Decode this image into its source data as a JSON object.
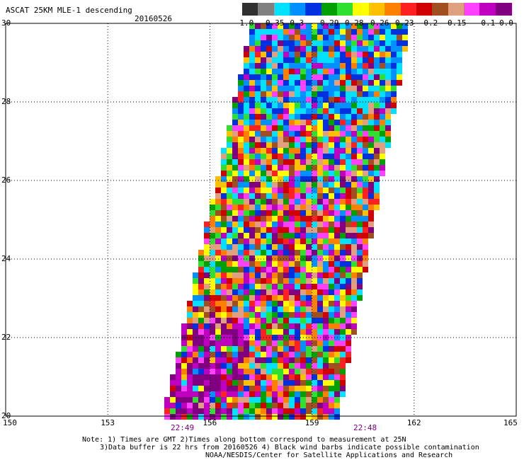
{
  "header": {
    "title": "ASCAT 25KM MLE-1 descending",
    "date": "20160526"
  },
  "colorbar": {
    "colors": [
      "#303030",
      "#808080",
      "#00e0ff",
      "#0090ff",
      "#0030e0",
      "#00a000",
      "#30e030",
      "#ffff00",
      "#ffc000",
      "#ff8000",
      "#ff2020",
      "#d00000",
      "#a05020",
      "#e0a080",
      "#ff40ff",
      "#c000c0",
      "#800080"
    ],
    "labels": [
      "-1.0",
      "-0.35",
      "-0.3",
      "-0.29",
      "-0.28",
      "-0.26",
      "-0.23",
      "-0.2",
      "-0.15",
      "-0.1",
      "0.0"
    ]
  },
  "chart_data": {
    "type": "heatmap",
    "title": "ASCAT 25KM MLE-1 descending",
    "x_ticks": [
      "150",
      "153",
      "156",
      "159",
      "162",
      "165"
    ],
    "y_ticks": [
      "30",
      "28",
      "26",
      "24",
      "22",
      "20"
    ],
    "xlim": [
      150,
      165
    ],
    "ylim": [
      20,
      30
    ],
    "grid": true,
    "swath": {
      "lon_left_at_20": 154.7,
      "lon_left_at_30": 157.3,
      "lon_right_at_20": 159.7,
      "lon_right_at_30": 161.8
    },
    "time_labels": [
      "22:49",
      "22:48"
    ],
    "time_label_color": "#800080"
  },
  "notes": [
    "Note: 1) Times are GMT 2)Times along bottom correspond to measurement at 25N",
    "3)Data buffer is 22 hrs from 20160526 4) Black wind barbs indicate possible contamination",
    "NOAA/NESDIS/Center for Satellite Applications and Research"
  ]
}
